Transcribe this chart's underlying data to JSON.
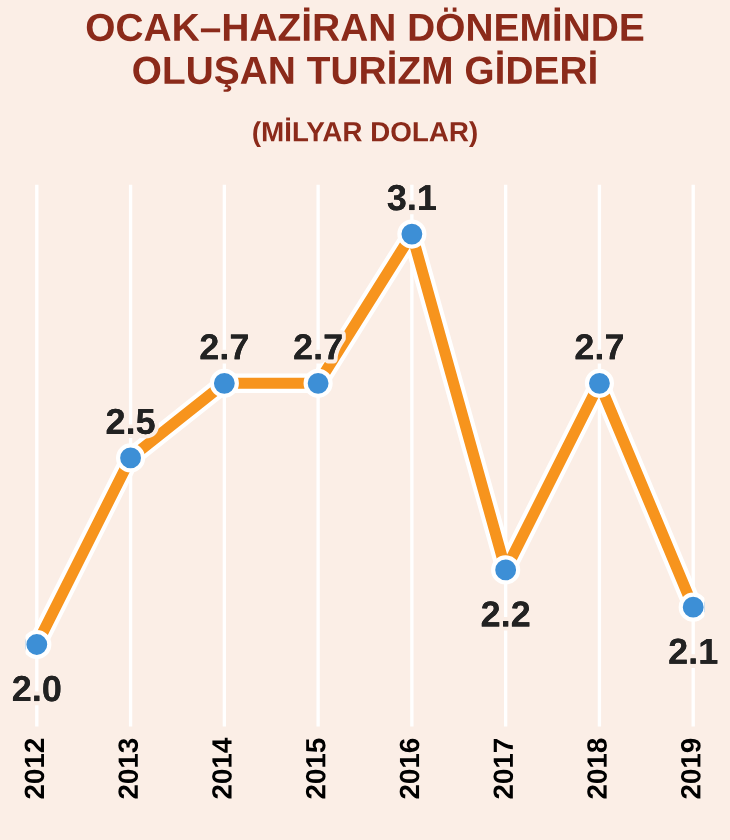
{
  "chart_data": {
    "type": "line",
    "title": "OCAK–HAZİRAN DÖNEMİNDE\nOLUŞAN TURİZM GİDERİ",
    "subtitle": "(MİLYAR DOLAR)",
    "categories": [
      "2012",
      "2013",
      "2014",
      "2015",
      "2016",
      "2017",
      "2018",
      "2019"
    ],
    "series": [
      {
        "color": "#f7941d",
        "values": [
          2.0,
          2.5,
          2.7,
          2.7,
          3.1,
          2.2,
          2.7,
          2.1
        ],
        "value_labels": [
          "2.0",
          "2.5",
          "2.7",
          "2.7",
          "3.1",
          "2.2",
          "2.7",
          "2.1"
        ]
      }
    ],
    "marker": "circle",
    "line_style": "solid",
    "grid": "x"
  }
}
